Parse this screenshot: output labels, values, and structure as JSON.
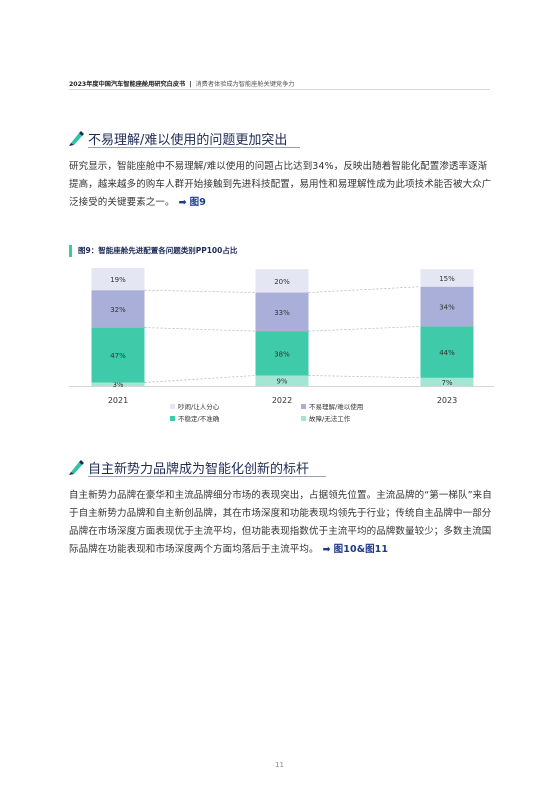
{
  "header": {
    "report_title": "2023年度中国汽车智能座舱用研究白皮书",
    "separator": "|",
    "section": "消费者体验成为智能座舱关键竞争力"
  },
  "section1": {
    "title": "不易理解/难以使用的问题更加突出",
    "paragraph": "研究显示，智能座舱中不易理解/难以使用的问题占比达到34%，反映出随着智能化配置渗透率逐渐提高，越来越多的购车人群开始接触到先进科技配置，易用性和易理解性成为此项技术能否被大众广泛接受的关键要素之一。",
    "arrow": "➡",
    "ref": "图9"
  },
  "figure": {
    "title": "图9：智能座舱先进配置各问题类别PP100占比"
  },
  "chart_data": {
    "type": "bar",
    "stacked": true,
    "percent": true,
    "categories": [
      "2021",
      "2022",
      "2023"
    ],
    "series": [
      {
        "name": "故障/无法工作",
        "values": [
          3,
          9,
          7
        ],
        "labels": [
          "3%",
          "9%",
          "7%"
        ],
        "color": "#a3e6d4"
      },
      {
        "name": "不稳定/不准确",
        "values": [
          47,
          38,
          44
        ],
        "labels": [
          "47%",
          "38%",
          "44%"
        ],
        "color": "#3fcaa9"
      },
      {
        "name": "不易理解/难以使用",
        "values": [
          32,
          33,
          34
        ],
        "labels": [
          "32%",
          "33%",
          "34%"
        ],
        "color": "#a9afd8"
      },
      {
        "name": "吵闹/让人分心",
        "values": [
          19,
          20,
          15
        ],
        "labels": [
          "19%",
          "20%",
          "15%"
        ],
        "color": "#e4e6f3"
      }
    ],
    "legend": [
      "吵闹/让人分心",
      "不易理解/难以使用",
      "不稳定/不准确",
      "故障/无法工作"
    ],
    "ylim": [
      0,
      101
    ],
    "grid": false,
    "legend_position": "bottom"
  },
  "section2": {
    "title": "自主新势力品牌成为智能化创新的标杆",
    "paragraph": "自主新势力品牌在豪华和主流品牌细分市场的表现突出，占据领先位置。主流品牌的“第一梯队”来自于自主新势力品牌和自主新创品牌，其在市场深度和功能表现均领先于行业；传统自主品牌中一部分品牌在市场深度方面表现优于主流平均，但功能表现指数优于主流平均的品牌数量较少；多数主流国际品牌在功能表现和市场深度两个方面均落后于主流平均。",
    "arrow": "➡",
    "ref": "图10&图11"
  },
  "page_number": "11",
  "colors": {
    "accent_teal": "#3bc9a7",
    "heading_navy": "#1e2a55",
    "link_blue": "#1e3a8a"
  },
  "icons": {
    "section_marker": "pencil-icon"
  }
}
